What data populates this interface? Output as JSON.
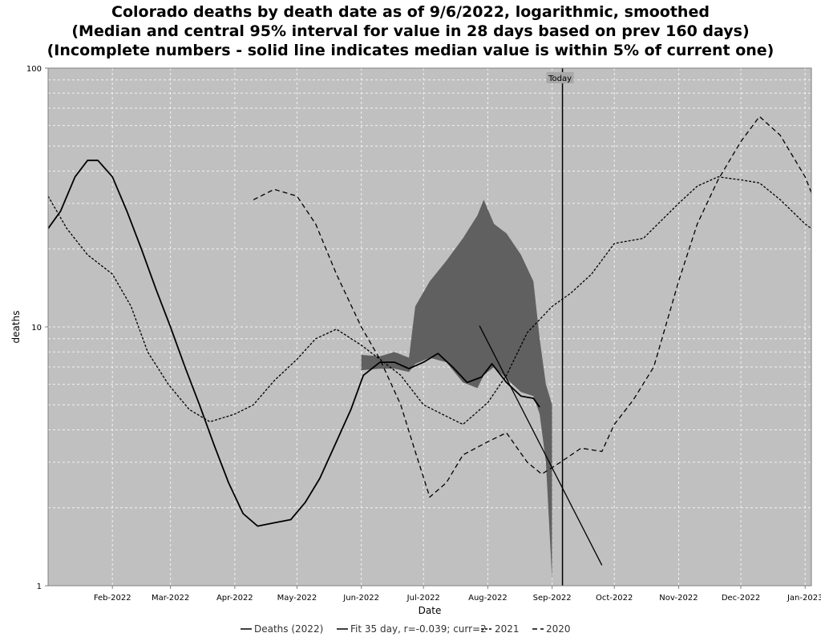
{
  "chart_data": {
    "type": "line",
    "title_lines": [
      "Colorado deaths by death date as of 9/6/2022, logarithmic, smoothed",
      "(Median and central 95% interval for value in 28 days based on prev 160 days)",
      "(Incomplete numbers - solid line indicates median value is within 5% of current one)"
    ],
    "xlabel": "Date",
    "ylabel": "deaths",
    "y_scale": "log",
    "ylim": [
      1,
      100
    ],
    "xlim": [
      "2022-01-01",
      "2023-01-04"
    ],
    "y_ticks": [
      {
        "value": 1,
        "label": "1"
      },
      {
        "value": 10,
        "label": "10"
      },
      {
        "value": 100,
        "label": "100"
      }
    ],
    "x_ticks": [
      {
        "value": "2022-02-01",
        "label": "Feb-2022"
      },
      {
        "value": "2022-03-01",
        "label": "Mar-2022"
      },
      {
        "value": "2022-04-01",
        "label": "Apr-2022"
      },
      {
        "value": "2022-05-01",
        "label": "May-2022"
      },
      {
        "value": "2022-06-01",
        "label": "Jun-2022"
      },
      {
        "value": "2022-07-01",
        "label": "Jul-2022"
      },
      {
        "value": "2022-08-01",
        "label": "Aug-2022"
      },
      {
        "value": "2022-09-01",
        "label": "Sep-2022"
      },
      {
        "value": "2022-10-01",
        "label": "Oct-2022"
      },
      {
        "value": "2022-11-01",
        "label": "Nov-2022"
      },
      {
        "value": "2022-12-01",
        "label": "Dec-2022"
      },
      {
        "value": "2023-01-01",
        "label": "Jan-2023"
      }
    ],
    "grid": true,
    "legend_position": "bottom",
    "annotations": [
      {
        "text": "Today",
        "x": "2022-09-06"
      }
    ],
    "fit_line": {
      "name": "Fit 35 day, r=-0.039; curr=2",
      "points": [
        {
          "x": "2022-07-28",
          "y": 10.1
        },
        {
          "x": "2022-09-25",
          "y": 1.2
        }
      ]
    },
    "band": {
      "points": [
        {
          "x": "2022-06-01",
          "lo": 6.8,
          "hi": 7.8
        },
        {
          "x": "2022-06-10",
          "lo": 6.9,
          "hi": 7.7
        },
        {
          "x": "2022-06-17",
          "lo": 6.9,
          "hi": 8.0
        },
        {
          "x": "2022-06-24",
          "lo": 6.7,
          "hi": 7.6
        },
        {
          "x": "2022-06-27",
          "lo": 7.2,
          "hi": 12
        },
        {
          "x": "2022-07-04",
          "lo": 7.6,
          "hi": 15
        },
        {
          "x": "2022-07-12",
          "lo": 7.3,
          "hi": 18
        },
        {
          "x": "2022-07-20",
          "lo": 6.1,
          "hi": 22
        },
        {
          "x": "2022-07-27",
          "lo": 5.8,
          "hi": 27
        },
        {
          "x": "2022-07-30",
          "lo": 6.5,
          "hi": 31
        },
        {
          "x": "2022-08-04",
          "lo": 7.0,
          "hi": 25
        },
        {
          "x": "2022-08-10",
          "lo": 6.3,
          "hi": 23
        },
        {
          "x": "2022-08-17",
          "lo": 5.6,
          "hi": 19
        },
        {
          "x": "2022-08-23",
          "lo": 5.4,
          "hi": 15
        },
        {
          "x": "2022-08-26",
          "lo": 4.6,
          "hi": 9
        },
        {
          "x": "2022-08-29",
          "lo": 3.0,
          "hi": 6
        },
        {
          "x": "2022-09-01",
          "lo": 1.05,
          "hi": 5
        }
      ]
    },
    "series": [
      {
        "name": "Deaths (2022)",
        "color": "#000000",
        "dash": "solid",
        "points": [
          {
            "x": "2022-01-01",
            "y": 24
          },
          {
            "x": "2022-01-07",
            "y": 28
          },
          {
            "x": "2022-01-14",
            "y": 38
          },
          {
            "x": "2022-01-20",
            "y": 44
          },
          {
            "x": "2022-01-25",
            "y": 44
          },
          {
            "x": "2022-02-01",
            "y": 38
          },
          {
            "x": "2022-02-08",
            "y": 28
          },
          {
            "x": "2022-02-15",
            "y": 20
          },
          {
            "x": "2022-02-22",
            "y": 14
          },
          {
            "x": "2022-03-01",
            "y": 10
          },
          {
            "x": "2022-03-08",
            "y": 7
          },
          {
            "x": "2022-03-15",
            "y": 5
          },
          {
            "x": "2022-03-22",
            "y": 3.5
          },
          {
            "x": "2022-03-29",
            "y": 2.5
          },
          {
            "x": "2022-04-05",
            "y": 1.9
          },
          {
            "x": "2022-04-12",
            "y": 1.7
          },
          {
            "x": "2022-04-20",
            "y": 1.75
          },
          {
            "x": "2022-04-28",
            "y": 1.8
          },
          {
            "x": "2022-05-05",
            "y": 2.1
          },
          {
            "x": "2022-05-12",
            "y": 2.6
          },
          {
            "x": "2022-05-20",
            "y": 3.6
          },
          {
            "x": "2022-05-27",
            "y": 4.8
          },
          {
            "x": "2022-06-02",
            "y": 6.5
          },
          {
            "x": "2022-06-10",
            "y": 7.3
          },
          {
            "x": "2022-06-17",
            "y": 7.3
          },
          {
            "x": "2022-06-24",
            "y": 6.9
          },
          {
            "x": "2022-07-01",
            "y": 7.3
          },
          {
            "x": "2022-07-08",
            "y": 7.9
          },
          {
            "x": "2022-07-15",
            "y": 7.0
          },
          {
            "x": "2022-07-22",
            "y": 6.1
          },
          {
            "x": "2022-07-29",
            "y": 6.4
          },
          {
            "x": "2022-08-03",
            "y": 7.2
          },
          {
            "x": "2022-08-10",
            "y": 6.1
          },
          {
            "x": "2022-08-17",
            "y": 5.4
          },
          {
            "x": "2022-08-23",
            "y": 5.3
          },
          {
            "x": "2022-08-26",
            "y": 4.9
          }
        ]
      },
      {
        "name": "2021",
        "color": "#000000",
        "dash": "short",
        "points": [
          {
            "x": "2022-01-01",
            "y": 32
          },
          {
            "x": "2022-01-10",
            "y": 24
          },
          {
            "x": "2022-01-20",
            "y": 19
          },
          {
            "x": "2022-02-01",
            "y": 16
          },
          {
            "x": "2022-02-10",
            "y": 12
          },
          {
            "x": "2022-02-18",
            "y": 8
          },
          {
            "x": "2022-02-28",
            "y": 6
          },
          {
            "x": "2022-03-10",
            "y": 4.8
          },
          {
            "x": "2022-03-20",
            "y": 4.3
          },
          {
            "x": "2022-04-01",
            "y": 4.6
          },
          {
            "x": "2022-04-10",
            "y": 5.0
          },
          {
            "x": "2022-04-20",
            "y": 6.2
          },
          {
            "x": "2022-05-01",
            "y": 7.5
          },
          {
            "x": "2022-05-10",
            "y": 9.0
          },
          {
            "x": "2022-05-20",
            "y": 9.8
          },
          {
            "x": "2022-06-01",
            "y": 8.5
          },
          {
            "x": "2022-06-10",
            "y": 7.5
          },
          {
            "x": "2022-06-20",
            "y": 6.5
          },
          {
            "x": "2022-07-01",
            "y": 5.0
          },
          {
            "x": "2022-07-10",
            "y": 4.6
          },
          {
            "x": "2022-07-20",
            "y": 4.2
          },
          {
            "x": "2022-08-01",
            "y": 5.1
          },
          {
            "x": "2022-08-10",
            "y": 6.5
          },
          {
            "x": "2022-08-20",
            "y": 9.5
          },
          {
            "x": "2022-09-01",
            "y": 12
          },
          {
            "x": "2022-09-10",
            "y": 13.5
          },
          {
            "x": "2022-09-20",
            "y": 16
          },
          {
            "x": "2022-10-01",
            "y": 21
          },
          {
            "x": "2022-10-15",
            "y": 22
          },
          {
            "x": "2022-11-01",
            "y": 30
          },
          {
            "x": "2022-11-10",
            "y": 35
          },
          {
            "x": "2022-11-20",
            "y": 38
          },
          {
            "x": "2022-12-01",
            "y": 37
          },
          {
            "x": "2022-12-10",
            "y": 36
          },
          {
            "x": "2022-12-20",
            "y": 31
          },
          {
            "x": "2023-01-01",
            "y": 25
          },
          {
            "x": "2023-01-04",
            "y": 24
          }
        ]
      },
      {
        "name": "2020",
        "color": "#000000",
        "dash": "long",
        "points": [
          {
            "x": "2022-04-10",
            "y": 31
          },
          {
            "x": "2022-04-20",
            "y": 34
          },
          {
            "x": "2022-05-01",
            "y": 32
          },
          {
            "x": "2022-05-10",
            "y": 25
          },
          {
            "x": "2022-05-20",
            "y": 16
          },
          {
            "x": "2022-06-01",
            "y": 10
          },
          {
            "x": "2022-06-10",
            "y": 7.5
          },
          {
            "x": "2022-06-20",
            "y": 5.0
          },
          {
            "x": "2022-06-27",
            "y": 3.3
          },
          {
            "x": "2022-07-04",
            "y": 2.2
          },
          {
            "x": "2022-07-12",
            "y": 2.5
          },
          {
            "x": "2022-07-20",
            "y": 3.2
          },
          {
            "x": "2022-08-01",
            "y": 3.6
          },
          {
            "x": "2022-08-10",
            "y": 3.9
          },
          {
            "x": "2022-08-20",
            "y": 3.0
          },
          {
            "x": "2022-08-27",
            "y": 2.7
          },
          {
            "x": "2022-09-05",
            "y": 3.0
          },
          {
            "x": "2022-09-15",
            "y": 3.4
          },
          {
            "x": "2022-09-25",
            "y": 3.3
          },
          {
            "x": "2022-10-01",
            "y": 4.2
          },
          {
            "x": "2022-10-10",
            "y": 5.2
          },
          {
            "x": "2022-10-20",
            "y": 7.0
          },
          {
            "x": "2022-11-01",
            "y": 15
          },
          {
            "x": "2022-11-10",
            "y": 25
          },
          {
            "x": "2022-11-20",
            "y": 37
          },
          {
            "x": "2022-12-01",
            "y": 52
          },
          {
            "x": "2022-12-10",
            "y": 65
          },
          {
            "x": "2022-12-20",
            "y": 55
          },
          {
            "x": "2023-01-01",
            "y": 38
          },
          {
            "x": "2023-01-04",
            "y": 33
          }
        ]
      }
    ],
    "legend": [
      {
        "label": "Deaths (2022)",
        "dash": "solid"
      },
      {
        "label": "Fit 35 day, r=-0.039; curr=2",
        "dash": "solid"
      },
      {
        "label": "2021",
        "dash": "short"
      },
      {
        "label": "2020",
        "dash": "long"
      }
    ]
  }
}
